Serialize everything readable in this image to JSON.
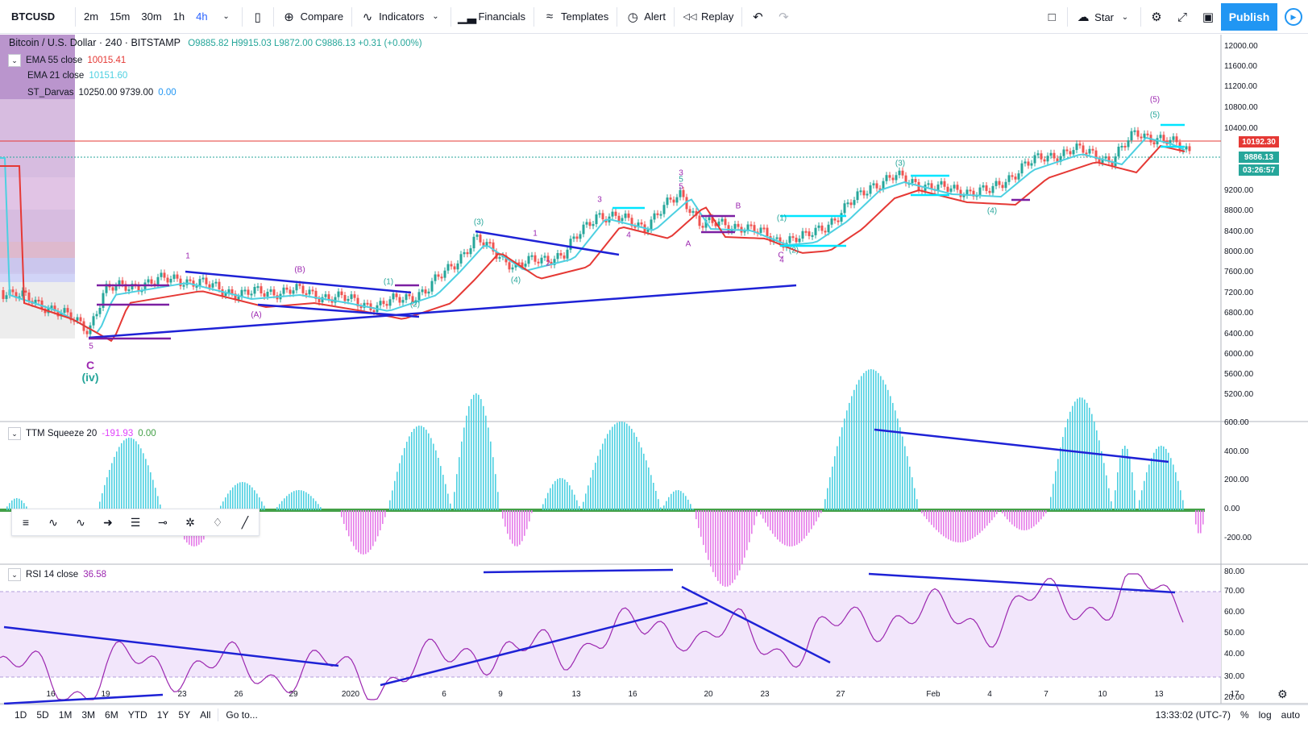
{
  "toolbar": {
    "symbol": "BTCUSD",
    "intervals": [
      "2m",
      "15m",
      "30m",
      "1h",
      "4h"
    ],
    "active_interval": "4h",
    "compare": "Compare",
    "indicators": "Indicators",
    "financials": "Financials",
    "templates": "Templates",
    "alert": "Alert",
    "replay": "Replay",
    "star": "Star",
    "publish": "Publish"
  },
  "header": {
    "title": "Bitcoin / U.S. Dollar · 240 · BITSTAMP",
    "ohlc": "O9885.82 H9915.03 L9872.00 C9886.13 +0.31 (+0.00%)"
  },
  "studies": [
    {
      "name": "EMA 55 close",
      "value": "10015.41",
      "color": "#e53935"
    },
    {
      "name": "EMA 21 close",
      "value": "10151.60",
      "color": "#4dd0e1"
    },
    {
      "name": "ST_Darvas",
      "value": "10250.00  9739.00",
      "extra": "0.00"
    }
  ],
  "price_axis": {
    "labels": [
      "12000.00",
      "11600.00",
      "11200.00",
      "10800.00",
      "10400.00",
      "9200.00",
      "8800.00",
      "8400.00",
      "8000.00",
      "7600.00",
      "7200.00",
      "6800.00",
      "6400.00",
      "6000.00",
      "5600.00",
      "5200.00"
    ],
    "tags": {
      "red": "10192.30",
      "green": "9886.13",
      "timer": "03:26:57"
    }
  },
  "chart_data": {
    "type": "line",
    "x_ticks": [
      "16",
      "19",
      "23",
      "26",
      "29",
      "2020",
      "6",
      "9",
      "13",
      "16",
      "20",
      "23",
      "27",
      "Feb",
      "4",
      "7",
      "10",
      "13",
      "17"
    ],
    "wave_labels": [
      "1",
      "(B)",
      "(A)",
      "(1)",
      "(2)",
      "(3)",
      "(4)",
      "1",
      "2",
      "3",
      "4",
      "5",
      "3",
      "5",
      "B",
      "A",
      "C",
      "(1)",
      "(2)",
      "4",
      "(3)",
      "(4)",
      "5",
      "(5)",
      "(5)",
      "C",
      "(iv)"
    ],
    "ylim": [
      5000,
      12400
    ]
  },
  "ttm": {
    "name": "TTM Squeeze 20",
    "v1": "-191.93",
    "v2": "0.00",
    "labels": [
      "600.00",
      "400.00",
      "200.00",
      "0.00",
      "-200.00"
    ]
  },
  "rsi": {
    "name": "RSI 14 close",
    "value": "36.58",
    "labels": [
      "80.00",
      "70.00",
      "60.00",
      "50.00",
      "40.00",
      "30.00",
      "20.00"
    ]
  },
  "bottom": {
    "ranges": [
      "1D",
      "5D",
      "1M",
      "3M",
      "6M",
      "YTD",
      "1Y",
      "5Y",
      "All"
    ],
    "goto": "Go to...",
    "time": "13:33:02 (UTC-7)",
    "percent": "%",
    "log": "log",
    "auto": "auto"
  }
}
